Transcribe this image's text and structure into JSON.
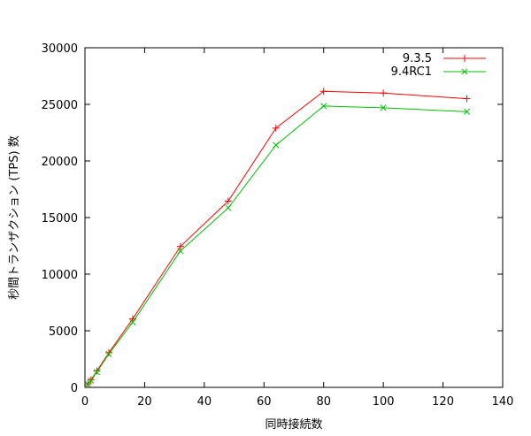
{
  "chart_data": {
    "type": "line",
    "title": "",
    "xlabel": "同時接続数",
    "ylabel": "秒間トランザクション (TPS) 数",
    "xlim": [
      0,
      140
    ],
    "ylim": [
      0,
      30000
    ],
    "x_ticks": [
      0,
      20,
      40,
      60,
      80,
      100,
      120,
      140
    ],
    "y_ticks": [
      0,
      5000,
      10000,
      15000,
      20000,
      25000,
      30000
    ],
    "grid": false,
    "legend_position": "top-right",
    "series": [
      {
        "name": "9.3.5",
        "color": "#ff0000",
        "marker": "plus",
        "x": [
          1,
          2,
          4,
          8,
          16,
          32,
          48,
          64,
          80,
          100,
          128
        ],
        "values": [
          300,
          650,
          1450,
          3050,
          6050,
          12450,
          16450,
          22900,
          26150,
          26000,
          25500
        ]
      },
      {
        "name": "9.4RC1",
        "color": "#00c000",
        "marker": "cross",
        "x": [
          1,
          2,
          4,
          8,
          16,
          32,
          48,
          64,
          80,
          100,
          128
        ],
        "values": [
          280,
          600,
          1350,
          2950,
          5750,
          12050,
          15850,
          21400,
          24850,
          24700,
          24350
        ]
      }
    ]
  }
}
